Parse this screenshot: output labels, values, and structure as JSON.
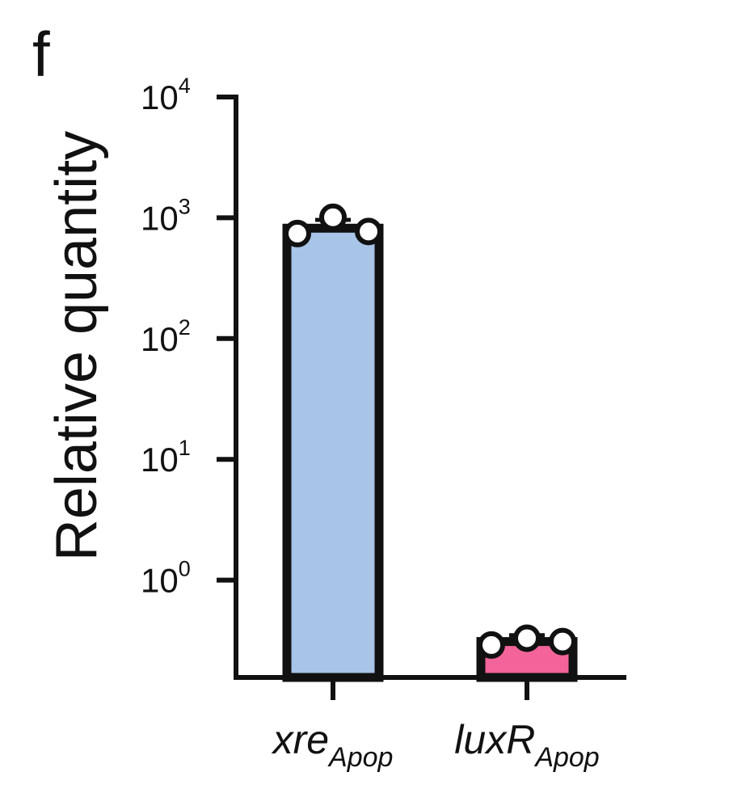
{
  "panel_label": "f",
  "colors": {
    "bar_1": "#a8c4e6",
    "bar_2": "#f2649a",
    "axis": "#111111",
    "marker_fill": "#ffffff"
  },
  "chart_data": {
    "type": "bar",
    "ylabel": "Relative quantity",
    "yscale": "log",
    "ylim": [
      0.2,
      10000
    ],
    "yticks": [
      {
        "base": "10",
        "exp": "0",
        "value": 1
      },
      {
        "base": "10",
        "exp": "1",
        "value": 10
      },
      {
        "base": "10",
        "exp": "2",
        "value": 100
      },
      {
        "base": "10",
        "exp": "3",
        "value": 1000
      },
      {
        "base": "10",
        "exp": "4",
        "value": 10000
      }
    ],
    "categories": [
      {
        "main": "xre",
        "sub": "Apop"
      },
      {
        "main": "luxR",
        "sub": "Apop"
      }
    ],
    "values": [
      820,
      0.31
    ],
    "errors": [
      [
        780,
        960
      ],
      [
        0.29,
        0.35
      ]
    ],
    "points": [
      [
        740,
        1010,
        770
      ],
      [
        0.29,
        0.33,
        0.31
      ]
    ]
  }
}
